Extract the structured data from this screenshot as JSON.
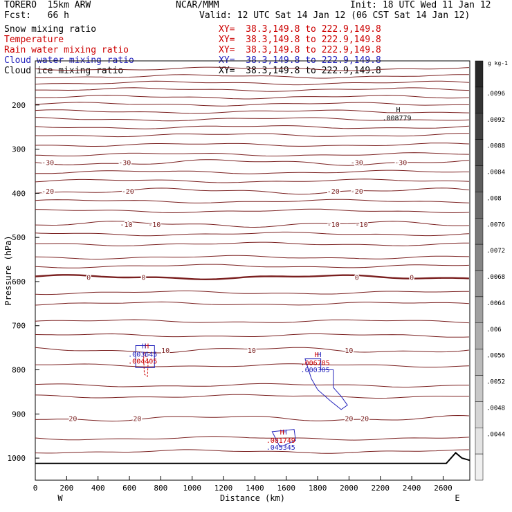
{
  "header": {
    "model": "TORERO  15km ARW",
    "center": "NCAR/MMM",
    "init": "Init: 18 UTC Wed 11 Jan 12",
    "fcst": "Fcst:   66 h",
    "valid": "Valid: 12 UTC Sat 14 Jan 12 (06 CST Sat 14 Jan 12)"
  },
  "fields": [
    {
      "name": "Snow mixing ratio",
      "xy": "XY=  38.3,149.8 to 222.9,149.8",
      "color": "#000000",
      "xy_color": "#cc0000"
    },
    {
      "name": "Temperature",
      "xy": "XY=  38.3,149.8 to 222.9,149.8",
      "color": "#cc0000",
      "xy_color": "#cc0000"
    },
    {
      "name": "Rain water mixing ratio",
      "xy": "XY=  38.3,149.8 to 222.9,149.8",
      "color": "#cc0000",
      "xy_color": "#cc0000"
    },
    {
      "name": "Cloud water mixing ratio",
      "xy": "XY=  38.3,149.8 to 222.9,149.8",
      "color": "#2222bb",
      "xy_color": "#2222bb"
    },
    {
      "name": "Cloud ice mixing ratio",
      "xy": "XY=  38.3,149.8 to 222.9,149.8",
      "color": "#000000",
      "xy_color": "#000000"
    }
  ],
  "chart_data": {
    "type": "contour-cross-section",
    "xlabel": "Distance (km)",
    "ylabel": "Pressure (hPa)",
    "xlim": [
      0,
      2770
    ],
    "ylim": [
      1050,
      100
    ],
    "x_ticks": [
      0,
      200,
      400,
      600,
      800,
      1000,
      1200,
      1400,
      1600,
      1800,
      2000,
      2200,
      2400,
      2600
    ],
    "y_ticks": [
      200,
      300,
      400,
      500,
      600,
      700,
      800,
      900,
      1000
    ],
    "x_end_labels": {
      "left": "W",
      "right": "E"
    },
    "colorbar": {
      "unit": "g kg-1",
      "labels": [
        ".0096",
        ".0092",
        ".0088",
        ".0084",
        ".008",
        ".0076",
        ".0072",
        ".0068",
        ".0064",
        ".006",
        ".0056",
        ".0052",
        ".0048",
        ".0044"
      ]
    },
    "temperature_contours": [
      {
        "label": "-30",
        "pressure_hPa": 330,
        "label_x_km": [
          80,
          570,
          2050,
          2330
        ]
      },
      {
        "label": "-20",
        "pressure_hPa": 395,
        "label_x_km": [
          80,
          590,
          1900,
          2050
        ]
      },
      {
        "label": "-10",
        "pressure_hPa": 470,
        "label_x_km": [
          580,
          760,
          1900,
          2080
        ]
      },
      {
        "label": "0",
        "pressure_hPa": 590,
        "label_x_km": [
          340,
          690,
          2050,
          2400
        ],
        "freezing_level": true
      },
      {
        "label": "10",
        "pressure_hPa": 755,
        "label_x_km": [
          830,
          1380,
          2000
        ]
      },
      {
        "label": "20",
        "pressure_hPa": 910,
        "label_x_km": [
          240,
          650,
          2000,
          2100
        ]
      }
    ],
    "extrema_labels": [
      {
        "marker": "H",
        "value": ".008779",
        "x_km": 2300,
        "pressure_hPa": 235,
        "field": "Snow mixing ratio"
      },
      {
        "marker": "H",
        "value": ".004405",
        "x_km": 680,
        "pressure_hPa": 770,
        "field": "Rain water mixing ratio"
      },
      {
        "marker": "H",
        "value": ".003645",
        "x_km": 680,
        "pressure_hPa": 770,
        "field": "Cloud water mixing ratio"
      },
      {
        "marker": "H",
        "value": ".000305",
        "x_km": 1780,
        "pressure_hPa": 790,
        "field": "Cloud water mixing ratio"
      },
      {
        "marker": "H",
        "value": ".006785",
        "x_km": 1780,
        "pressure_hPa": 790,
        "field": "Rain water mixing ratio"
      },
      {
        "marker": "H",
        "value": ".045345",
        "x_km": 1560,
        "pressure_hPa": 965,
        "field": "Cloud water mixing ratio"
      },
      {
        "marker": "H",
        "value": ".001749",
        "x_km": 1560,
        "pressure_hPa": 965,
        "field": "Rain water mixing ratio"
      }
    ]
  }
}
